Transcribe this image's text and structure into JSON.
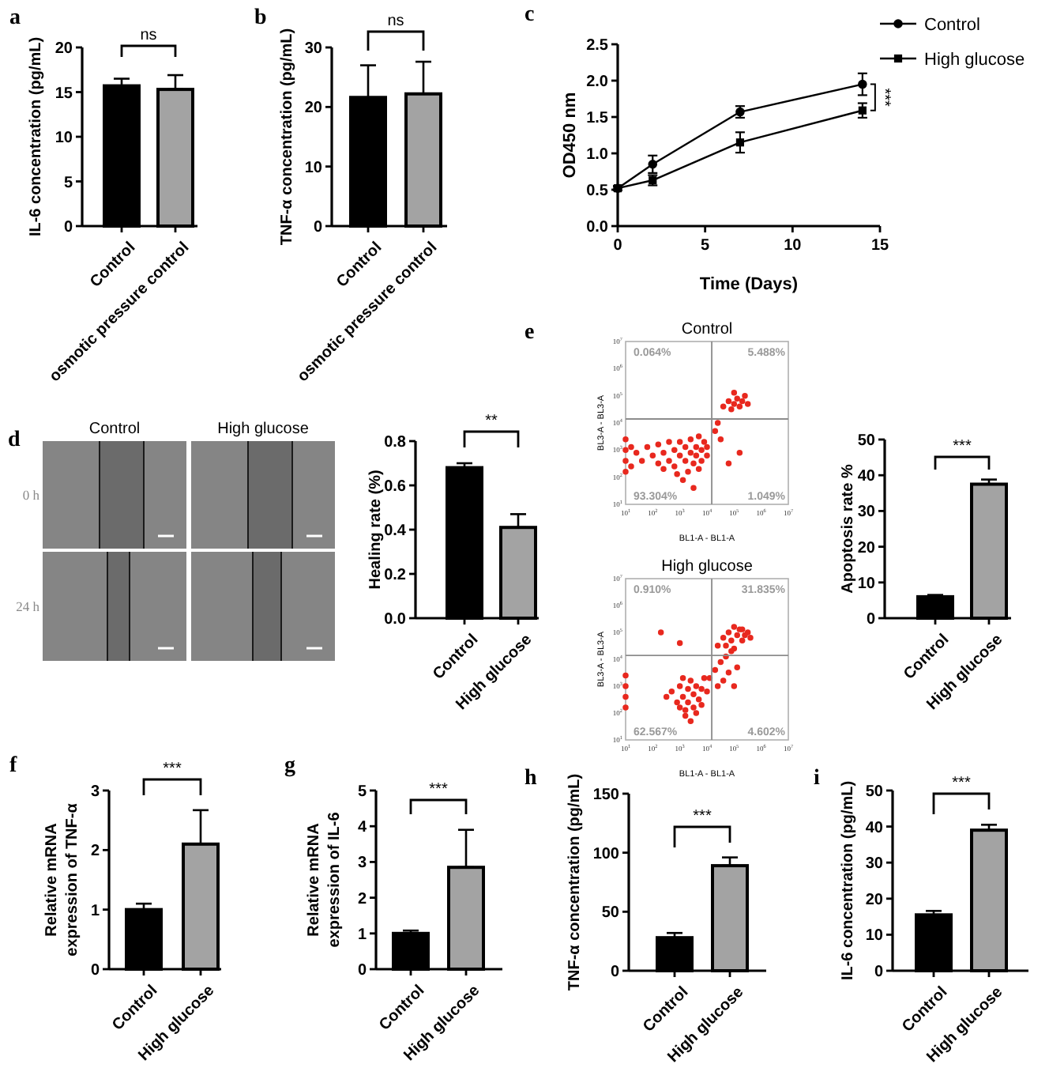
{
  "chart_data": [
    {
      "type": "bar",
      "title": "a",
      "categories": [
        "Control",
        "osmotic pressure control"
      ],
      "values": [
        15.7,
        15.3
      ],
      "colors": [
        "#000000",
        "#a3a3a3"
      ],
      "errors": [
        [
          15.7,
          16.5
        ],
        [
          15.3,
          16.9
        ]
      ],
      "ylabel": "IL-6 concentration (pg/mL)",
      "ylim": [
        0,
        20
      ],
      "yticks": [
        0,
        5,
        10,
        15,
        20
      ],
      "annotations": [
        "ns"
      ]
    },
    {
      "type": "bar",
      "title": "b",
      "categories": [
        "Control",
        "osmotic pressure control"
      ],
      "values": [
        21.6,
        22.2
      ],
      "colors": [
        "#000000",
        "#a3a3a3"
      ],
      "errors": [
        [
          21.6,
          27
        ],
        [
          22.2,
          27.6
        ]
      ],
      "ylabel": "TNF-α concentration (pg/mL)",
      "ylim": [
        0,
        30
      ],
      "yticks": [
        0,
        10,
        20,
        30
      ],
      "annotations": [
        "ns"
      ]
    },
    {
      "type": "line",
      "title": "c",
      "x": [
        0,
        2,
        7,
        14
      ],
      "series": [
        {
          "name": "Control",
          "color": "#000000",
          "marker": "circle",
          "values": [
            0.52,
            0.85,
            1.57,
            1.95
          ],
          "errors": [
            0.03,
            0.12,
            0.08,
            0.15
          ]
        },
        {
          "name": "High glucose",
          "color": "#000000",
          "marker": "square",
          "values": [
            0.52,
            0.63,
            1.15,
            1.59
          ],
          "errors": [
            0.03,
            0.07,
            0.14,
            0.1
          ]
        }
      ],
      "xlim": [
        0,
        15
      ],
      "xticks": [
        0,
        5,
        10,
        15
      ],
      "ylim": [
        0,
        2.5
      ],
      "yticks": [
        {
          "value": 0,
          "label": "0.0"
        },
        0.5,
        {
          "value": 1,
          "label": "1.0"
        },
        1.5,
        {
          "value": 2,
          "label": "2.0"
        },
        2.5
      ],
      "xlabel": "Time (Days)",
      "ylabel": "OD450 nm",
      "legend": "top right",
      "annotations": [
        "***"
      ]
    },
    {
      "type": "other",
      "title": "d",
      "categories": [
        "Control",
        "High glucose"
      ],
      "y_categories": [
        "0 h",
        "24 h"
      ]
    },
    {
      "type": "bar",
      "categories": [
        "Control",
        "High glucose"
      ],
      "values": [
        0.68,
        0.41
      ],
      "colors": [
        "#000000",
        "#a3a3a3"
      ],
      "errors": [
        [
          0.68,
          0.7
        ],
        [
          0.41,
          0.47
        ]
      ],
      "ylabel": "Healing rate (%)",
      "ylim": [
        0,
        0.8
      ],
      "yticks": [
        {
          "value": 0,
          "label": "0.0"
        },
        0.2,
        0.4,
        0.6,
        0.8
      ],
      "annotations": [
        "**"
      ]
    },
    {
      "type": "scatter",
      "title": "Control",
      "x": [
        25,
        40,
        63,
        100,
        160,
        160,
        250,
        400,
        400,
        630,
        630,
        1000,
        1000,
        1600,
        1600,
        2000,
        2500,
        2500,
        3200,
        4000,
        4000,
        5000,
        6300,
        6300,
        7900,
        10000,
        10000,
        1300,
        3200,
        790,
        5000,
        250,
        10,
        10,
        10,
        10,
        16,
        16,
        40000,
        63000,
        79000,
        100000,
        130000,
        160000,
        200000,
        250000,
        320000,
        100000,
        20000,
        25000,
        32000,
        63000,
        160000
      ],
      "values": [
        790,
        400,
        1300,
        630,
        320,
        1600,
        790,
        400,
        2000,
        1000,
        250,
        630,
        2000,
        400,
        1300,
        160,
        790,
        2500,
        320,
        1300,
        630,
        200,
        1000,
        400,
        2000,
        630,
        1300,
        79,
        40,
        130,
        3200,
        200,
        160,
        400,
        1000,
        2500,
        250,
        1300,
        40000,
        63000,
        32000,
        50000,
        79000,
        40000,
        63000,
        100000,
        50000,
        130000,
        5000,
        10000,
        2500,
        320,
        790
      ],
      "color": "#e8281e",
      "marker": "circle",
      "log": "xy",
      "xlim": [
        10,
        10000000
      ],
      "ylim": [
        10,
        10000000
      ],
      "xticks": [
        {
          "value": 10,
          "label": "10$^{1}$"
        },
        {
          "value": 100,
          "label": "10$^{2}$"
        },
        {
          "value": 1000,
          "label": "10$^{3}$"
        },
        {
          "value": 10000,
          "label": "10$^{4}$"
        },
        {
          "value": 100000,
          "label": "10$^{5}$"
        },
        {
          "value": 1000000,
          "label": "10$^{6}$"
        },
        {
          "value": 10000000,
          "label": "10$^{7}$"
        }
      ],
      "yticks": [
        {
          "value": 10,
          "label": "10$^{1}$"
        },
        {
          "value": 100,
          "label": "10$^{2}$"
        },
        {
          "value": 1000,
          "label": "10$^{3}$"
        },
        {
          "value": 10000,
          "label": "10$^{4}$"
        },
        {
          "value": 100000,
          "label": "10$^{5}$"
        },
        {
          "value": 1000000,
          "label": "10$^{6}$"
        },
        {
          "value": 10000000,
          "label": "10$^{7}$"
        }
      ],
      "xlabel": "BL1-A - BL1-A",
      "ylabel": "BL3-A - BL3-A",
      "ref_lines": [
        {
          "axis": "x",
          "value": 15000,
          "color": "#8c8c8c"
        },
        {
          "axis": "y",
          "value": 14000,
          "color": "#8c8c8c"
        }
      ],
      "annotations": [
        "0.064%",
        "5.488%",
        "93.304%",
        "1.049%",
        "e"
      ]
    },
    {
      "type": "scatter",
      "title": "High glucose",
      "x": [
        500,
        790,
        1000,
        1300,
        1600,
        2000,
        2000,
        2500,
        3200,
        3200,
        4000,
        5000,
        6300,
        7900,
        2500,
        1600,
        1000,
        4000,
        320,
        10000,
        6300,
        1300,
        10,
        10,
        10,
        10,
        12600,
        20000,
        32000,
        50000,
        40000,
        63000,
        100000,
        130000,
        25000,
        25000,
        40000,
        50000,
        63000,
        79000,
        100000,
        130000,
        160000,
        200000,
        250000,
        320000,
        400000,
        100000,
        200000,
        79000,
        200,
        1000
      ],
      "values": [
        630,
        250,
        1000,
        400,
        130,
        790,
        250,
        1600,
        500,
        160,
        1000,
        320,
        790,
        2000,
        50,
        79,
        160,
        100,
        400,
        630,
        200,
        2000,
        160,
        400,
        1000,
        2500,
        2000,
        4000,
        7900,
        12600,
        1600,
        3200,
        1000,
        5000,
        1000,
        32000,
        63000,
        32000,
        100000,
        50000,
        25000,
        79000,
        130000,
        50000,
        79000,
        100000,
        63000,
        160000,
        130000,
        20000,
        100000,
        40000
      ],
      "color": "#e8281e",
      "marker": "circle",
      "log": "xy",
      "xlim": [
        10,
        10000000
      ],
      "ylim": [
        10,
        10000000
      ],
      "xticks": [
        {
          "value": 10,
          "label": "10$^{1}$"
        },
        {
          "value": 100,
          "label": "10$^{2}$"
        },
        {
          "value": 1000,
          "label": "10$^{3}$"
        },
        {
          "value": 10000,
          "label": "10$^{4}$"
        },
        {
          "value": 100000,
          "label": "10$^{5}$"
        },
        {
          "value": 1000000,
          "label": "10$^{6}$"
        },
        {
          "value": 10000000,
          "label": "10$^{7}$"
        }
      ],
      "yticks": [
        {
          "value": 10,
          "label": "10$^{1}$"
        },
        {
          "value": 100,
          "label": "10$^{2}$"
        },
        {
          "value": 1000,
          "label": "10$^{3}$"
        },
        {
          "value": 10000,
          "label": "10$^{4}$"
        },
        {
          "value": 100000,
          "label": "10$^{5}$"
        },
        {
          "value": 1000000,
          "label": "10$^{6}$"
        },
        {
          "value": 10000000,
          "label": "10$^{7}$"
        }
      ],
      "xlabel": "BL1-A - BL1-A",
      "ylabel": "BL3-A - BL3-A",
      "ref_lines": [
        {
          "axis": "x",
          "value": 15000,
          "color": "#8c8c8c"
        },
        {
          "axis": "y",
          "value": 14000,
          "color": "#8c8c8c"
        }
      ],
      "annotations": [
        "0.910%",
        "31.835%",
        "62.567%",
        "4.602%"
      ]
    },
    {
      "type": "bar",
      "categories": [
        "Control",
        "High glucose"
      ],
      "values": [
        6,
        37.5
      ],
      "colors": [
        "#000000",
        "#a3a3a3"
      ],
      "errors": [
        [
          6,
          6.5
        ],
        [
          37.5,
          38.8
        ]
      ],
      "ylabel": "Apoptosis rate %",
      "ylim": [
        0,
        50
      ],
      "yticks": [
        0,
        10,
        20,
        30,
        40,
        50
      ],
      "annotations": [
        "***"
      ]
    },
    {
      "type": "bar",
      "title": "f",
      "categories": [
        "Control",
        "High glucose"
      ],
      "values": [
        1,
        2.1
      ],
      "colors": [
        "#000000",
        "#a3a3a3"
      ],
      "errors": [
        [
          1,
          1.1
        ],
        [
          2.1,
          2.67
        ]
      ],
      "ylabel": "Relative mRNA\nexpression of TNF-α",
      "ylim": [
        0,
        3
      ],
      "yticks": [
        0,
        1,
        2,
        3
      ],
      "annotations": [
        "***"
      ]
    },
    {
      "type": "bar",
      "title": "g",
      "categories": [
        "Control",
        "High glucose"
      ],
      "values": [
        1,
        2.85
      ],
      "colors": [
        "#000000",
        "#a3a3a3"
      ],
      "errors": [
        [
          1,
          1.08
        ],
        [
          2.85,
          3.9
        ]
      ],
      "ylabel": "Relative mRNA\nexpression of IL-6",
      "ylim": [
        0,
        5
      ],
      "yticks": [
        0,
        1,
        2,
        3,
        4,
        5
      ],
      "annotations": [
        "***"
      ]
    },
    {
      "type": "bar",
      "title": "h",
      "categories": [
        "Control",
        "High glucose"
      ],
      "values": [
        28,
        89
      ],
      "colors": [
        "#000000",
        "#a3a3a3"
      ],
      "errors": [
        [
          28,
          32
        ],
        [
          89,
          96
        ]
      ],
      "ylabel": "TNF-α concentration (pg/mL)",
      "ylim": [
        0,
        150
      ],
      "yticks": [
        0,
        50,
        100,
        150
      ],
      "annotations": [
        "***"
      ]
    },
    {
      "type": "bar",
      "title": "i",
      "categories": [
        "Control",
        "High glucose"
      ],
      "values": [
        15.5,
        39
      ],
      "colors": [
        "#000000",
        "#a3a3a3"
      ],
      "errors": [
        [
          15.5,
          16.6
        ],
        [
          39,
          40.5
        ]
      ],
      "ylabel": "IL-6 concentration (pg/mL)",
      "ylim": [
        0,
        50
      ],
      "yticks": [
        0,
        10,
        20,
        30,
        40,
        50
      ],
      "annotations": [
        "***"
      ]
    }
  ]
}
